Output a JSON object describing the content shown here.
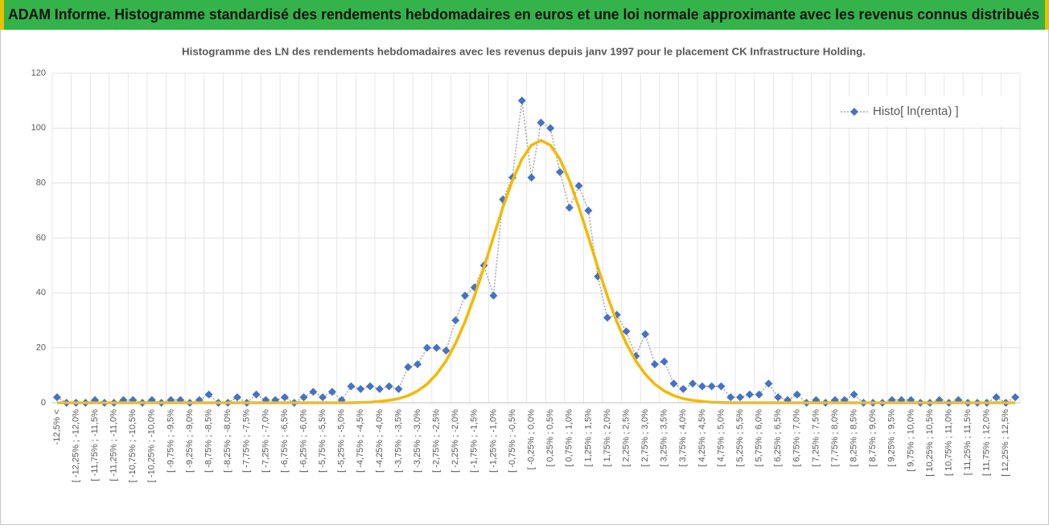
{
  "header": {
    "title": "ADAM Informe. Histogramme standardisé des rendements hebdomadaires en euros et une loi normale approximante avec les revenus connus distribués"
  },
  "chart_data": {
    "type": "line",
    "title": "Histogramme des LN des rendements hebdomadaires avec les revenus depuis janv 1997 pour le placement CK Infrastructure Holding.",
    "categories": [
      "-12,5% <",
      null,
      "[ -12,25% ; -12,0%",
      null,
      "[ -11,75% ; -11,5%",
      null,
      "[ -11,25% ; -11,0%",
      null,
      "[ -10,75% ; -10,5%",
      null,
      "[ -10,25% ; -10,0%",
      null,
      "[ -9,75% ; -9,5%",
      null,
      "[ -9,25% ; -9,0%",
      null,
      "[ -8,75% ; -8,5%",
      null,
      "[ -8,25% ; -8,0%",
      null,
      "[ -7,75% ; -7,5%",
      null,
      "[ -7,25% ; -7,0%",
      null,
      "[ -6,75% ; -6,5%",
      null,
      "[ -6,25% ; -6,0%",
      null,
      "[ -5,75% ; -5,5%",
      null,
      "[ -5,25% ; -5,0%",
      null,
      "[ -4,75% ; -4,5%",
      null,
      "[ -4,25% ; -4,0%",
      null,
      "[ -3,75% ; -3,5%",
      null,
      "[ -3,25% ; -3,0%",
      null,
      "[ -2,75% ; -2,5%",
      null,
      "[ -2,25% ; -2,0%",
      null,
      "[ -1,75% ; -1,5%",
      null,
      "[ -1,25% ; -1,0%",
      null,
      "[ -0,75% ; -0,5%",
      null,
      "[ -0,25% ; 0,0%",
      null,
      "[ 0,25% ; 0,5%",
      null,
      "[ 0,75% ; 1,0%",
      null,
      "[ 1,25% ; 1,5%",
      null,
      "[ 1,75% ; 2,0%",
      null,
      "[ 2,25% ; 2,5%",
      null,
      "[ 2,75% ; 3,0%",
      null,
      "[ 3,25% ; 3,5%",
      null,
      "[ 3,75% ; 4,0%",
      null,
      "[ 4,25% ; 4,5%",
      null,
      "[ 4,75% ; 5,0%",
      null,
      "[ 5,25% ; 5,5%",
      null,
      "[ 5,75% ; 6,0%",
      null,
      "[ 6,25% ; 6,5%",
      null,
      "[ 6,75% ; 7,0%",
      null,
      "[ 7,25% ; 7,5%",
      null,
      "[ 7,75% ; 8,0%",
      null,
      "[ 8,25% ; 8,5%",
      null,
      "[ 8,75% ; 9,0%",
      null,
      "[ 9,25% ; 9,5%",
      null,
      "[ 9,75% ; 10,0%",
      null,
      "[ 10,25% ; 10,5%",
      null,
      "[ 10,75% ; 11,0%",
      null,
      "[ 11,25% ; 11,5%",
      null,
      "[ 11,75% ; 12,0%",
      null,
      "[ 12,25% ; 12,5%",
      null
    ],
    "series": [
      {
        "name": "Histo[ ln(renta) ]",
        "color": "#4472c4",
        "line_color": "#a5a5a5",
        "marker": "diamond",
        "values": [
          2,
          0,
          0,
          0,
          1,
          0,
          0,
          1,
          1,
          0,
          1,
          0,
          1,
          1,
          0,
          1,
          3,
          0,
          0,
          2,
          0,
          3,
          1,
          1,
          2,
          0,
          2,
          4,
          2,
          4,
          1,
          6,
          5,
          6,
          5,
          6,
          5,
          13,
          14,
          20,
          20,
          19,
          30,
          39,
          42,
          50,
          39,
          74,
          82,
          110,
          82,
          102,
          100,
          84,
          71,
          79,
          70,
          46,
          31,
          32,
          26,
          17,
          25,
          14,
          15,
          7,
          5,
          7,
          6,
          6,
          6,
          2,
          2,
          3,
          3,
          7,
          2,
          1,
          3,
          0,
          1,
          0,
          1,
          1,
          3,
          0,
          0,
          0,
          1,
          1,
          1,
          0,
          0,
          1,
          0,
          1,
          0,
          0,
          0,
          2,
          0,
          2
        ]
      },
      {
        "color": "#f5b800",
        "values": [
          0,
          0,
          0,
          0,
          0,
          0,
          0,
          0,
          0,
          0,
          0,
          0,
          0,
          0,
          0,
          0,
          0,
          0,
          0,
          0,
          0,
          0,
          0,
          0,
          0,
          0,
          0,
          0,
          0,
          0,
          0,
          0,
          0.1,
          0.2,
          0.5,
          0.9,
          1.5,
          2.6,
          4.3,
          6.8,
          10.4,
          15.2,
          21.6,
          29.5,
          38.9,
          49.3,
          60.4,
          71.2,
          81.0,
          88.7,
          93.8,
          95.5,
          93.8,
          88.7,
          81.0,
          71.2,
          60.4,
          49.3,
          38.9,
          29.5,
          21.6,
          15.2,
          10.4,
          6.8,
          4.3,
          2.6,
          1.5,
          0.9,
          0.5,
          0.2,
          0.1,
          0,
          0,
          0,
          0,
          0,
          0,
          0,
          0,
          0,
          0,
          0,
          0,
          0,
          0,
          0,
          0,
          0,
          0,
          0,
          0,
          0,
          0,
          0,
          0,
          0,
          0,
          0,
          0,
          0,
          0,
          0
        ]
      }
    ],
    "ylim": [
      0,
      120
    ],
    "yticks": [
      0,
      20,
      40,
      60,
      80,
      100,
      120
    ],
    "grid": true,
    "legend": "top-right"
  }
}
